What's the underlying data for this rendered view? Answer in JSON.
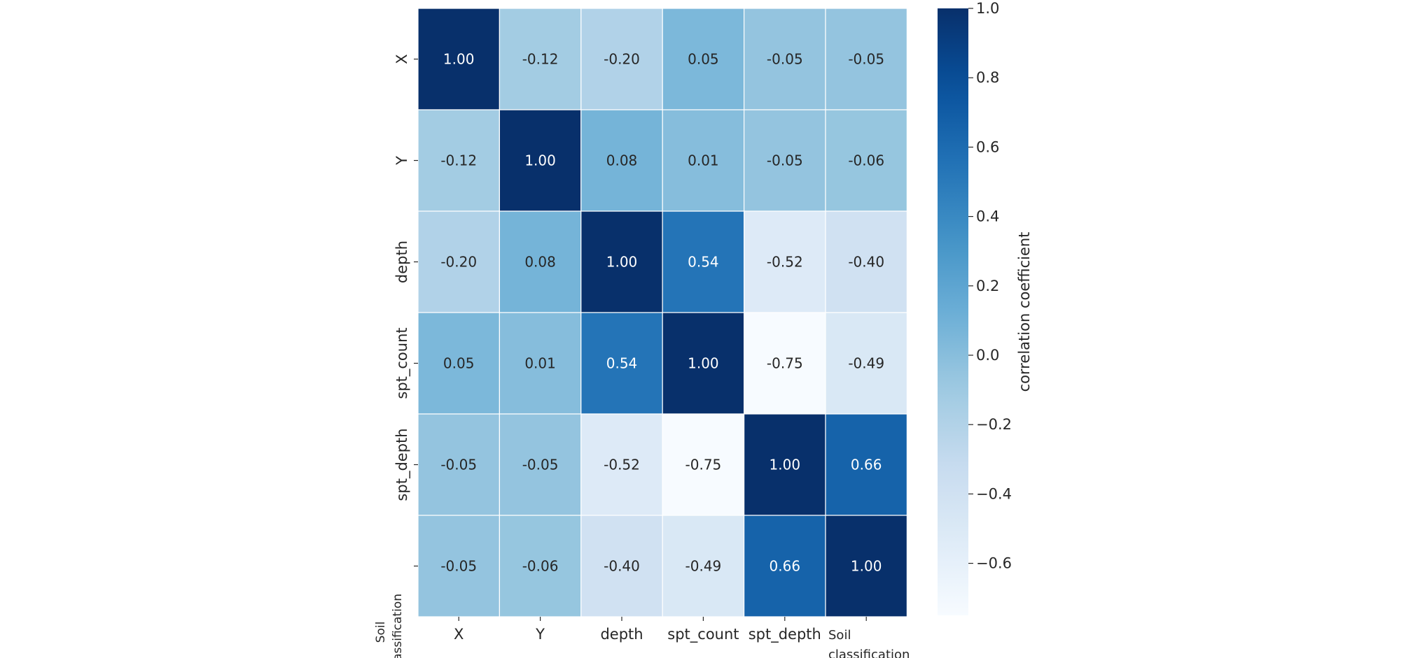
{
  "chart_data": {
    "type": "heatmap",
    "x_labels": [
      "X",
      "Y",
      "depth",
      "spt_count",
      "spt_depth",
      "Soil classification"
    ],
    "y_labels": [
      "X",
      "Y",
      "depth",
      "spt_count",
      "spt_depth",
      "Soil classification"
    ],
    "values": [
      [
        1.0,
        -0.12,
        -0.2,
        0.05,
        -0.05,
        -0.05
      ],
      [
        -0.12,
        1.0,
        0.08,
        0.01,
        -0.05,
        -0.06
      ],
      [
        -0.2,
        0.08,
        1.0,
        0.54,
        -0.52,
        -0.4
      ],
      [
        0.05,
        0.01,
        0.54,
        1.0,
        -0.75,
        -0.49
      ],
      [
        -0.05,
        -0.05,
        -0.52,
        -0.75,
        1.0,
        0.66
      ],
      [
        -0.05,
        -0.06,
        -0.4,
        -0.49,
        0.66,
        1.0
      ]
    ],
    "value_format": "2 decimals",
    "colormap": "Blues",
    "colorbar": {
      "label": "correlation coefficient",
      "range": [
        -0.75,
        1.0
      ],
      "ticks": [
        1.0,
        0.8,
        0.6,
        0.4,
        0.2,
        0.0,
        -0.2,
        -0.4,
        -0.6
      ],
      "tick_labels": [
        "1.0",
        "0.8",
        "0.6",
        "0.4",
        "0.2",
        "0.0",
        "−0.2",
        "−0.4",
        "−0.6"
      ]
    },
    "grid_lines": "white"
  }
}
